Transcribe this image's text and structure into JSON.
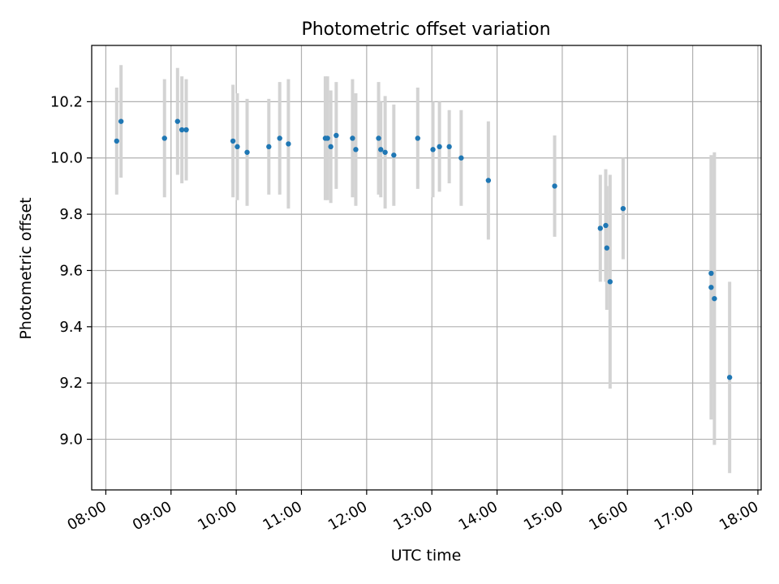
{
  "chart_data": {
    "type": "scatter",
    "title": "Photometric offset variation",
    "xlabel": "UTC time",
    "ylabel": "Photometric offset",
    "x_ticks": [
      "08:00",
      "09:00",
      "10:00",
      "11:00",
      "12:00",
      "13:00",
      "14:00",
      "15:00",
      "16:00",
      "17:00",
      "18:00"
    ],
    "y_ticks": [
      "9.0",
      "9.2",
      "9.4",
      "9.6",
      "9.8",
      "10.0",
      "10.2"
    ],
    "xlim": [
      "07:47",
      "18:03"
    ],
    "ylim": [
      8.82,
      10.4
    ],
    "grid": true,
    "colors": {
      "point": "#1f77b4",
      "errorbar": "#d3d3d3",
      "grid": "#b0b0b0"
    },
    "points": [
      {
        "time": "08:10",
        "y": 10.06,
        "err": 0.19
      },
      {
        "time": "08:14",
        "y": 10.13,
        "err": 0.2
      },
      {
        "time": "08:54",
        "y": 10.07,
        "err": 0.21
      },
      {
        "time": "09:06",
        "y": 10.13,
        "err": 0.19
      },
      {
        "time": "09:10",
        "y": 10.1,
        "err": 0.19
      },
      {
        "time": "09:14",
        "y": 10.1,
        "err": 0.18
      },
      {
        "time": "09:57",
        "y": 10.06,
        "err": 0.2
      },
      {
        "time": "10:01",
        "y": 10.04,
        "err": 0.19
      },
      {
        "time": "10:10",
        "y": 10.02,
        "err": 0.19
      },
      {
        "time": "10:30",
        "y": 10.04,
        "err": 0.17
      },
      {
        "time": "10:40",
        "y": 10.07,
        "err": 0.2
      },
      {
        "time": "10:48",
        "y": 10.05,
        "err": 0.23
      },
      {
        "time": "11:22",
        "y": 10.07,
        "err": 0.22
      },
      {
        "time": "11:24",
        "y": 10.07,
        "err": 0.22
      },
      {
        "time": "11:27",
        "y": 10.04,
        "err": 0.2
      },
      {
        "time": "11:32",
        "y": 10.08,
        "err": 0.19
      },
      {
        "time": "11:47",
        "y": 10.07,
        "err": 0.21
      },
      {
        "time": "11:50",
        "y": 10.03,
        "err": 0.2
      },
      {
        "time": "12:11",
        "y": 10.07,
        "err": 0.2
      },
      {
        "time": "12:13",
        "y": 10.03,
        "err": 0.17
      },
      {
        "time": "12:17",
        "y": 10.02,
        "err": 0.2
      },
      {
        "time": "12:25",
        "y": 10.01,
        "err": 0.18
      },
      {
        "time": "12:47",
        "y": 10.07,
        "err": 0.18
      },
      {
        "time": "13:01",
        "y": 10.03,
        "err": 0.17
      },
      {
        "time": "13:07",
        "y": 10.04,
        "err": 0.16
      },
      {
        "time": "13:16",
        "y": 10.04,
        "err": 0.13
      },
      {
        "time": "13:27",
        "y": 10.0,
        "err": 0.17
      },
      {
        "time": "13:52",
        "y": 9.92,
        "err": 0.21
      },
      {
        "time": "14:53",
        "y": 9.9,
        "err": 0.18
      },
      {
        "time": "15:35",
        "y": 9.75,
        "err": 0.19
      },
      {
        "time": "15:40",
        "y": 9.76,
        "err": 0.2
      },
      {
        "time": "15:41",
        "y": 9.68,
        "err": 0.22
      },
      {
        "time": "15:44",
        "y": 9.56,
        "err": 0.38
      },
      {
        "time": "15:56",
        "y": 9.82,
        "err": 0.18
      },
      {
        "time": "17:17",
        "y": 9.59,
        "err": 0.41
      },
      {
        "time": "17:17",
        "y": 9.54,
        "err": 0.47
      },
      {
        "time": "17:20",
        "y": 9.5,
        "err": 0.52
      },
      {
        "time": "17:34",
        "y": 9.22,
        "err": 0.34
      }
    ]
  }
}
